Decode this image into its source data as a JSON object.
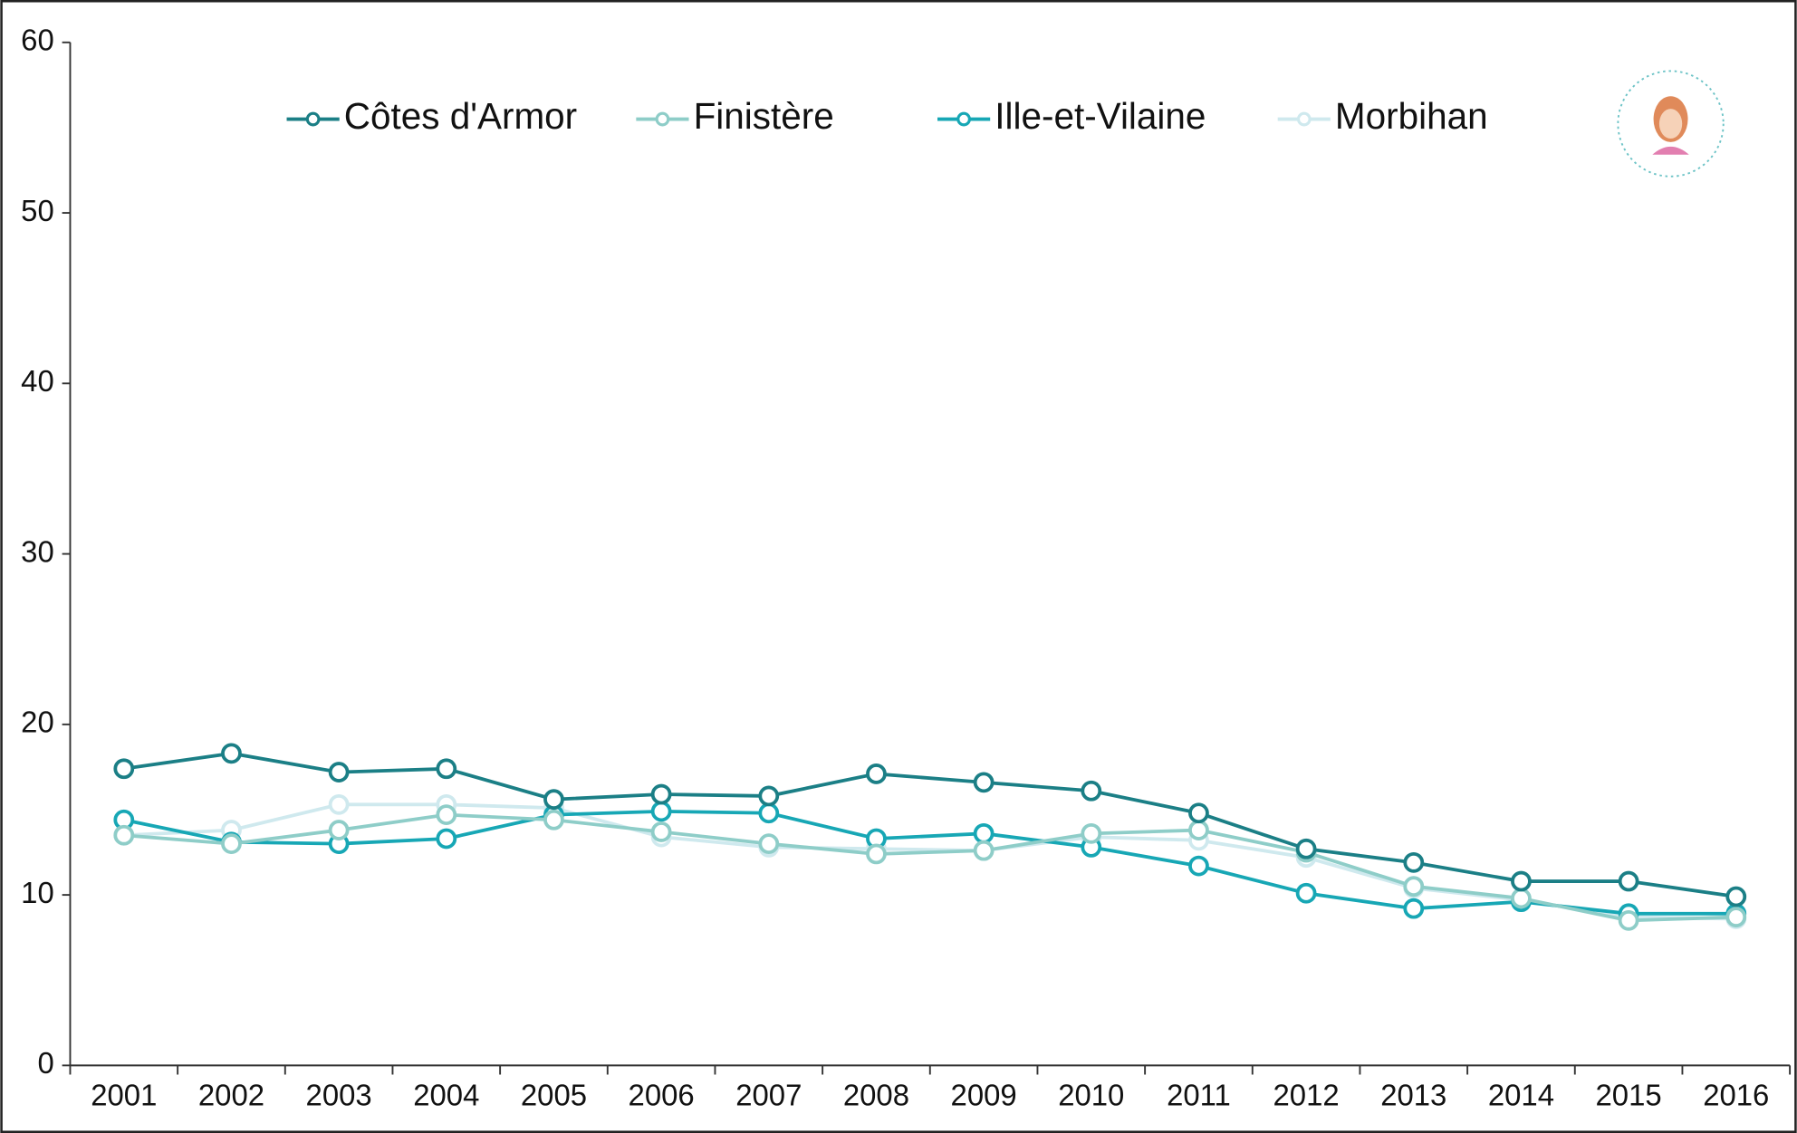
{
  "chart_data": {
    "type": "line",
    "categories": [
      "2001",
      "2002",
      "2003",
      "2004",
      "2005",
      "2006",
      "2007",
      "2008",
      "2009",
      "2010",
      "2011",
      "2012",
      "2013",
      "2014",
      "2015",
      "2016"
    ],
    "series": [
      {
        "name": "Côtes d'Armor",
        "color": "#1b7f86",
        "values": [
          17.4,
          18.3,
          17.2,
          17.4,
          15.6,
          15.9,
          15.8,
          17.1,
          16.6,
          16.1,
          14.8,
          12.7,
          11.9,
          10.8,
          10.8,
          9.9
        ]
      },
      {
        "name": "Finistère",
        "color": "#8ecdc8",
        "values": [
          13.5,
          13.0,
          13.8,
          14.7,
          14.4,
          13.7,
          13.0,
          12.4,
          12.6,
          13.6,
          13.8,
          12.5,
          10.5,
          9.8,
          8.5,
          8.7
        ]
      },
      {
        "name": "Ille-et-Vilaine",
        "color": "#17a7b5",
        "values": [
          14.4,
          13.1,
          13.0,
          13.3,
          14.7,
          14.9,
          14.8,
          13.3,
          13.6,
          12.8,
          11.7,
          10.1,
          9.2,
          9.6,
          8.9,
          8.9
        ]
      },
      {
        "name": "Morbihan",
        "color": "#cfe9ee",
        "values": [
          13.5,
          13.8,
          15.3,
          15.3,
          15.1,
          13.4,
          12.8,
          12.7,
          12.6,
          13.4,
          13.2,
          12.2,
          10.4,
          9.7,
          8.7,
          8.6
        ]
      }
    ],
    "ylim": [
      0,
      60
    ],
    "yticks": [
      0,
      10,
      20,
      30,
      40,
      50,
      60
    ],
    "grid": false
  }
}
